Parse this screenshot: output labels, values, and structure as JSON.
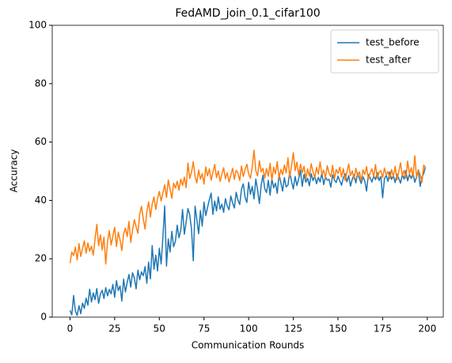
{
  "chart_data": {
    "type": "line",
    "title": "FedAMD_join_0.1_cifar100",
    "x_label": "Communication Rounds",
    "y_label": "Accuracy",
    "x": [
      0,
      1,
      2,
      3,
      4,
      5,
      6,
      7,
      8,
      9,
      10,
      11,
      12,
      13,
      14,
      15,
      16,
      17,
      18,
      19,
      20,
      21,
      22,
      23,
      24,
      25,
      26,
      27,
      28,
      29,
      30,
      31,
      32,
      33,
      34,
      35,
      36,
      37,
      38,
      39,
      40,
      41,
      42,
      43,
      44,
      45,
      46,
      47,
      48,
      49,
      50,
      51,
      52,
      53,
      54,
      55,
      56,
      57,
      58,
      59,
      60,
      61,
      62,
      63,
      64,
      65,
      66,
      67,
      68,
      69,
      70,
      71,
      72,
      73,
      74,
      75,
      76,
      77,
      78,
      79,
      80,
      81,
      82,
      83,
      84,
      85,
      86,
      87,
      88,
      89,
      90,
      91,
      92,
      93,
      94,
      95,
      96,
      97,
      98,
      99,
      100,
      101,
      102,
      103,
      104,
      105,
      106,
      107,
      108,
      109,
      110,
      111,
      112,
      113,
      114,
      115,
      116,
      117,
      118,
      119,
      120,
      121,
      122,
      123,
      124,
      125,
      126,
      127,
      128,
      129,
      130,
      131,
      132,
      133,
      134,
      135,
      136,
      137,
      138,
      139,
      140,
      141,
      142,
      143,
      144,
      145,
      146,
      147,
      148,
      149,
      150,
      151,
      152,
      153,
      154,
      155,
      156,
      157,
      158,
      159,
      160,
      161,
      162,
      163,
      164,
      165,
      166,
      167,
      168,
      169,
      170,
      171,
      172,
      173,
      174,
      175,
      176,
      177,
      178,
      179,
      180,
      181,
      182,
      183,
      184,
      185,
      186,
      187,
      188,
      189,
      190,
      191,
      192,
      193,
      194,
      195,
      196,
      197,
      198,
      199
    ],
    "series": [
      {
        "name": "test_before",
        "color": "#1f77b4",
        "values": [
          2.3,
          0.8,
          7.4,
          2.1,
          0.6,
          3.9,
          1.2,
          4.8,
          3.0,
          6.5,
          4.1,
          9.6,
          5.2,
          8.3,
          6.0,
          9.8,
          4.7,
          7.9,
          9.2,
          6.4,
          10.1,
          7.3,
          9.5,
          8.0,
          11.2,
          6.8,
          12.5,
          9.1,
          10.7,
          5.5,
          13.0,
          8.6,
          11.9,
          14.6,
          10.3,
          15.2,
          13.4,
          9.7,
          16.1,
          12.8,
          15.5,
          14.2,
          17.3,
          11.6,
          18.9,
          13.1,
          24.5,
          16.4,
          21.2,
          15.8,
          23.6,
          18.2,
          27.4,
          38.1,
          17.5,
          26.8,
          22.3,
          29.4,
          24.1,
          26.0,
          31.5,
          27.2,
          29.8,
          36.9,
          28.4,
          32.6,
          37.2,
          35.1,
          30.2,
          19.3,
          38.0,
          33.4,
          28.6,
          36.5,
          31.2,
          39.4,
          34.8,
          37.6,
          40.3,
          42.5,
          35.2,
          39.8,
          36.4,
          41.2,
          37.0,
          38.7,
          35.9,
          40.6,
          38.1,
          36.8,
          41.5,
          39.2,
          37.4,
          42.8,
          40.1,
          38.6,
          43.9,
          45.7,
          41.0,
          39.3,
          46.2,
          42.1,
          44.8,
          40.5,
          47.3,
          43.6,
          38.9,
          45.2,
          48.6,
          44.0,
          42.7,
          46.9,
          41.8,
          47.5,
          44.3,
          45.9,
          42.4,
          49.0,
          46.1,
          43.2,
          47.8,
          44.6,
          45.3,
          49.7,
          46.5,
          43.9,
          48.2,
          45.1,
          47.4,
          50.3,
          44.8,
          48.9,
          46.2,
          47.6,
          45.0,
          49.2,
          46.8,
          48.4,
          45.7,
          47.9,
          46.3,
          49.5,
          45.4,
          48.0,
          46.9,
          47.2,
          44.5,
          48.7,
          47.0,
          46.1,
          48.3,
          46.7,
          45.2,
          47.8,
          49.1,
          46.4,
          48.5,
          44.9,
          47.3,
          48.8,
          46.0,
          49.3,
          47.5,
          45.8,
          48.1,
          46.6,
          43.2,
          48.9,
          47.7,
          46.3,
          48.4,
          47.1,
          49.6,
          46.8,
          48.2,
          40.9,
          47.4,
          48.6,
          46.5,
          49.8,
          47.2,
          48.5,
          46.1,
          49.0,
          47.6,
          45.9,
          48.8,
          47.3,
          50.2,
          46.7,
          48.9,
          47.5,
          49.4,
          46.2,
          48.1,
          50.5,
          44.8,
          47.9,
          49.2,
          51.6
        ]
      },
      {
        "name": "test_after",
        "color": "#ff7f0e",
        "values": [
          18.5,
          22.3,
          21.1,
          24.0,
          19.6,
          25.2,
          20.8,
          23.5,
          26.1,
          21.9,
          25.4,
          22.6,
          24.3,
          21.2,
          26.8,
          31.8,
          24.5,
          28.2,
          23.0,
          27.4,
          18.2,
          25.9,
          29.6,
          24.7,
          27.8,
          30.8,
          24.2,
          29.1,
          26.5,
          22.8,
          28.4,
          30.5,
          27.6,
          32.8,
          25.6,
          29.9,
          33.4,
          31.0,
          28.7,
          35.2,
          38.0,
          33.6,
          30.2,
          36.1,
          39.5,
          34.3,
          38.7,
          41.2,
          36.9,
          40.5,
          43.1,
          39.8,
          42.6,
          45.3,
          41.0,
          47.0,
          43.8,
          40.7,
          45.9,
          44.2,
          46.6,
          43.5,
          47.3,
          45.1,
          48.0,
          44.4,
          52.8,
          47.5,
          49.6,
          53.3,
          48.2,
          46.0,
          50.4,
          47.3,
          49.2,
          45.6,
          51.5,
          48.4,
          50.8,
          46.9,
          49.7,
          52.3,
          47.8,
          50.1,
          46.5,
          48.9,
          51.2,
          47.4,
          49.5,
          46.3,
          48.6,
          51.0,
          47.2,
          50.3,
          49.4,
          46.8,
          51.8,
          48.2,
          50.6,
          52.4,
          49.0,
          47.6,
          51.5,
          57.2,
          50.2,
          48.4,
          53.6,
          49.8,
          51.0,
          47.7,
          50.9,
          48.3,
          52.7,
          46.9,
          51.4,
          49.1,
          53.3,
          47.5,
          50.6,
          48.8,
          52.1,
          49.4,
          54.6,
          47.9,
          51.8,
          56.4,
          50.2,
          53.1,
          48.6,
          52.4,
          49.5,
          51.7,
          47.4,
          50.8,
          48.3,
          52.6,
          49.9,
          47.8,
          51.3,
          49.0,
          53.2,
          48.7,
          50.4,
          47.6,
          51.9,
          49.3,
          48.1,
          52.0,
          47.4,
          50.6,
          49.2,
          51.4,
          48.0,
          50.9,
          46.8,
          49.7,
          52.5,
          48.5,
          50.1,
          47.3,
          51.0,
          48.4,
          49.8,
          46.7,
          50.5,
          48.9,
          51.6,
          47.2,
          49.4,
          50.8,
          48.1,
          52.3,
          47.5,
          49.6,
          50.2,
          47.8,
          51.1,
          48.7,
          49.9,
          47.4,
          50.6,
          48.2,
          51.7,
          47.0,
          49.8,
          52.9,
          48.4,
          50.3,
          47.6,
          53.5,
          49.1,
          51.2,
          48.0,
          55.3,
          47.7,
          50.5,
          48.8,
          46.2,
          52.1,
          51.2
        ]
      }
    ],
    "xlim": [
      -9.95,
      208.95
    ],
    "xticks": [
      0,
      25,
      50,
      75,
      100,
      125,
      150,
      175,
      200
    ],
    "ylim": [
      0,
      100
    ],
    "yticks": [
      0,
      20,
      40,
      60,
      80,
      100
    ],
    "legend": "upper right"
  }
}
